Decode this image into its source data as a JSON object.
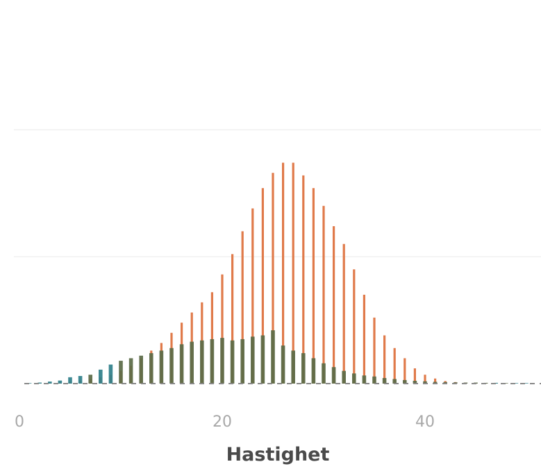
{
  "chart_data": {
    "type": "bar",
    "xlabel": "Hastighet",
    "x_ticks": [
      0,
      20,
      40
    ],
    "xlim": [
      0,
      50
    ],
    "ylim": [
      0,
      1.0
    ],
    "grid": true,
    "colors": {
      "orange": "#e07a4a",
      "teal": "#2f7f8a",
      "overlap": "#5a6a46"
    },
    "x": [
      1,
      2,
      3,
      4,
      5,
      6,
      7,
      8,
      9,
      10,
      11,
      12,
      13,
      14,
      15,
      16,
      17,
      18,
      19,
      20,
      21,
      22,
      23,
      24,
      25,
      26,
      27,
      28,
      29,
      30,
      31,
      32,
      33,
      34,
      35,
      36,
      37,
      38,
      39,
      40,
      41,
      42,
      43,
      44,
      45,
      46,
      47,
      48,
      49,
      50
    ],
    "series": [
      {
        "color": "orange",
        "values": [
          0,
          0,
          0.002,
          0.005,
          0.008,
          0.012,
          0.018,
          0.025,
          0.035,
          0.05,
          0.07,
          0.1,
          0.13,
          0.16,
          0.2,
          0.24,
          0.28,
          0.32,
          0.36,
          0.43,
          0.51,
          0.6,
          0.69,
          0.77,
          0.83,
          0.87,
          0.87,
          0.82,
          0.77,
          0.7,
          0.62,
          0.55,
          0.45,
          0.35,
          0.26,
          0.19,
          0.14,
          0.1,
          0.06,
          0.035,
          0.02,
          0.01,
          0.006,
          0.004,
          0.003,
          0.002,
          0.001,
          0.001,
          0,
          0
        ]
      },
      {
        "color": "teal",
        "values": [
          0.002,
          0.004,
          0.008,
          0.012,
          0.025,
          0.03,
          0.035,
          0.055,
          0.075,
          0.09,
          0.1,
          0.11,
          0.12,
          0.13,
          0.14,
          0.155,
          0.165,
          0.17,
          0.175,
          0.18,
          0.17,
          0.175,
          0.185,
          0.19,
          0.21,
          0.15,
          0.13,
          0.12,
          0.1,
          0.08,
          0.065,
          0.05,
          0.04,
          0.032,
          0.028,
          0.022,
          0.018,
          0.014,
          0.011,
          0.009,
          0.007,
          0.006,
          0.005,
          0.004,
          0.004,
          0.003,
          0.003,
          0.002,
          0.002,
          0.002
        ]
      }
    ]
  }
}
